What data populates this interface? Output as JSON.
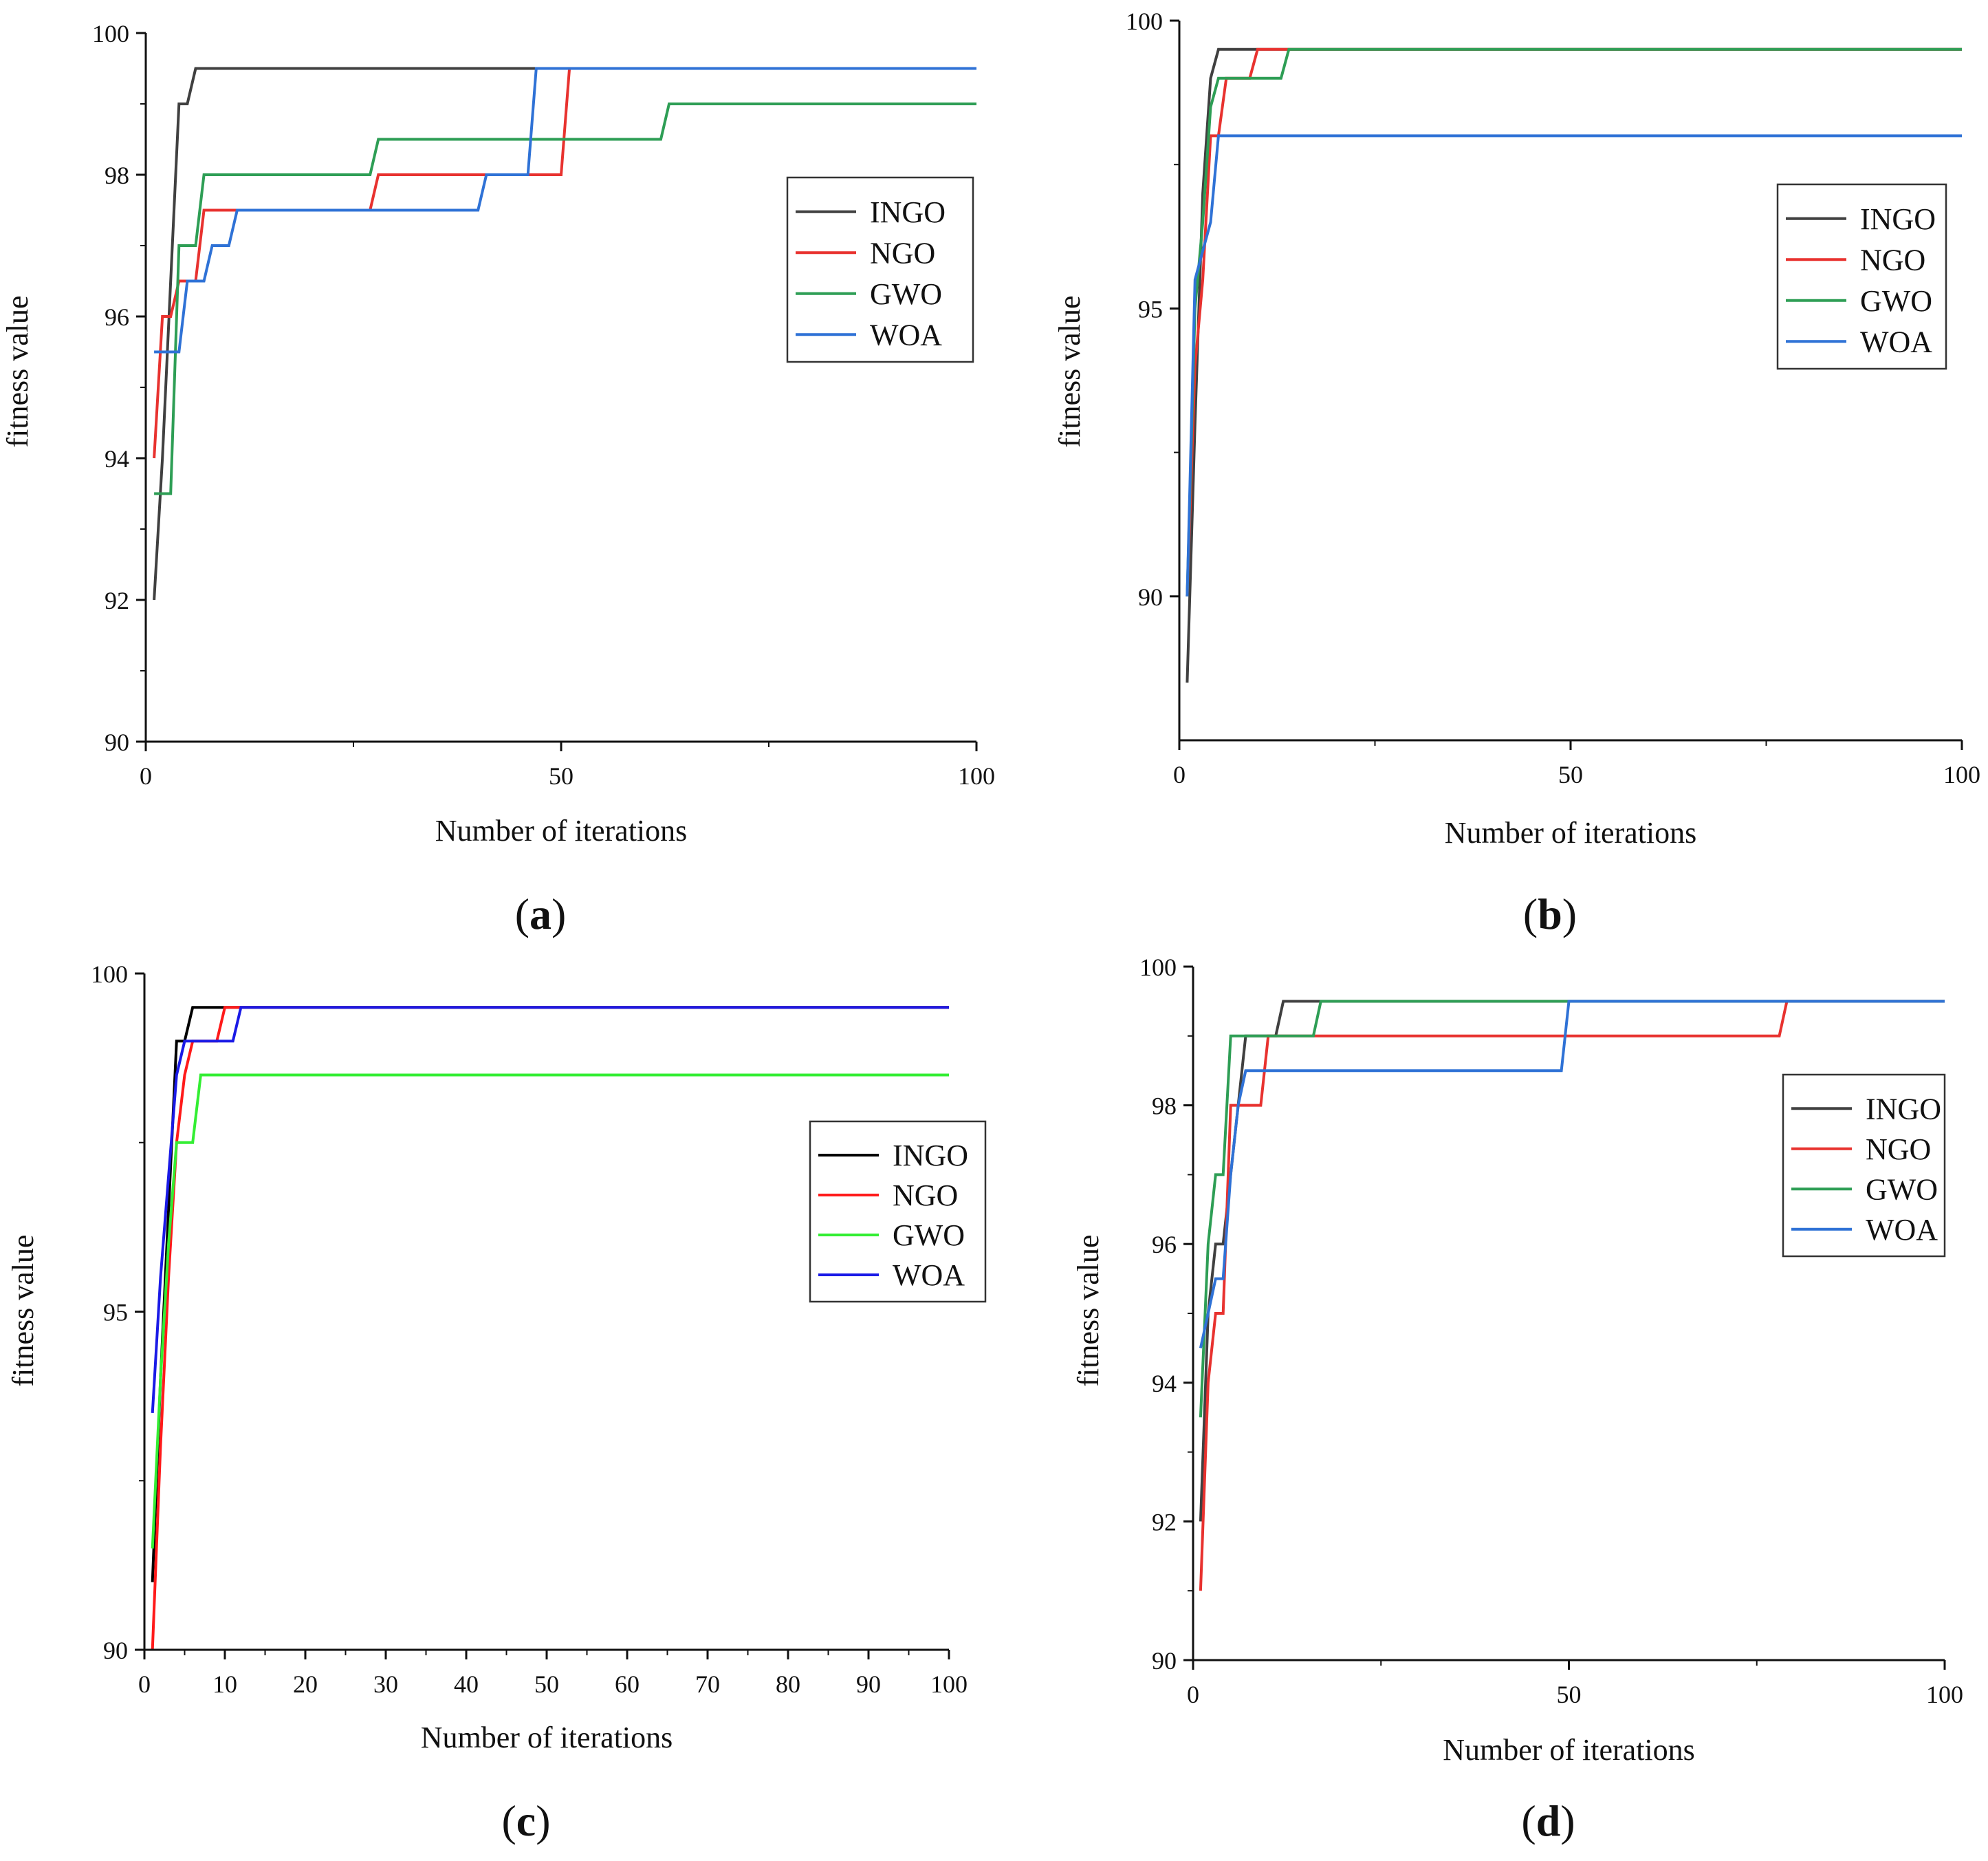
{
  "figure": {
    "panels": [
      "a",
      "b",
      "c",
      "d"
    ]
  },
  "chart_data": [
    {
      "id": "a",
      "type": "line",
      "caption": "a",
      "xlabel": "Number of iterations",
      "ylabel": "fitness value",
      "xlim": [
        0,
        100
      ],
      "ylim": [
        90,
        100
      ],
      "xticks": [
        0,
        50,
        100
      ],
      "yticks": [
        90,
        92,
        94,
        96,
        98,
        100
      ],
      "legend": "center-right",
      "grid": false,
      "series": [
        {
          "name": "INGO",
          "color": "#404040",
          "x": [
            1,
            2,
            3,
            4,
            5,
            6,
            7,
            100
          ],
          "y": [
            92,
            94,
            96.5,
            99,
            99,
            99.5,
            99.5,
            99.5
          ]
        },
        {
          "name": "NGO",
          "color": "#e8322f",
          "x": [
            1,
            2,
            4,
            6,
            7,
            27,
            28,
            50,
            51,
            100
          ],
          "y": [
            94,
            96,
            96.5,
            96.5,
            97.5,
            97.5,
            98,
            98,
            99.5,
            99.5
          ]
        },
        {
          "name": "GWO",
          "color": "#2e9e55",
          "x": [
            1,
            4,
            7,
            27,
            28,
            62,
            63,
            100
          ],
          "y": [
            93.5,
            97,
            98,
            98,
            98.5,
            98.5,
            99,
            99
          ]
        },
        {
          "name": "WOA",
          "color": "#2f72d6",
          "x": [
            1,
            4,
            5,
            7,
            8,
            10,
            11,
            40,
            41,
            46,
            47,
            100
          ],
          "y": [
            95.5,
            95.5,
            96.5,
            96.5,
            97,
            97,
            97.5,
            97.5,
            98,
            98,
            99.5,
            99.5
          ]
        }
      ]
    },
    {
      "id": "b",
      "type": "line",
      "caption": "b",
      "xlabel": "Number of iterations",
      "ylabel": "fitness value",
      "xlim": [
        0,
        100
      ],
      "ylim": [
        87.5,
        100
      ],
      "xticks": [
        0,
        50,
        100
      ],
      "yticks": [
        90,
        95,
        100
      ],
      "legend": "center-right",
      "grid": false,
      "series": [
        {
          "name": "INGO",
          "color": "#404040",
          "x": [
            1,
            2,
            3,
            4,
            5,
            100
          ],
          "y": [
            88.5,
            93,
            97,
            99,
            99.5,
            99.5
          ]
        },
        {
          "name": "NGO",
          "color": "#e8322f",
          "x": [
            1,
            2,
            3,
            4,
            6,
            9,
            10,
            100
          ],
          "y": [
            90,
            94,
            95.5,
            98,
            99,
            99,
            99.5,
            99.5
          ]
        },
        {
          "name": "GWO",
          "color": "#2e9e55",
          "x": [
            1,
            2,
            3,
            4,
            5,
            13,
            14,
            100
          ],
          "y": [
            90,
            95,
            96.5,
            98.5,
            99,
            99,
            99.5,
            99.5
          ]
        },
        {
          "name": "WOA",
          "color": "#2f72d6",
          "x": [
            1,
            2,
            3,
            4,
            5,
            100
          ],
          "y": [
            90,
            95.5,
            96,
            96.5,
            98,
            98
          ]
        }
      ]
    },
    {
      "id": "c",
      "type": "line",
      "caption": "c",
      "xlabel": "Number of iterations",
      "ylabel": "fitness value",
      "xlim": [
        0,
        100
      ],
      "ylim": [
        90,
        100
      ],
      "xticks": [
        0,
        10,
        20,
        30,
        40,
        50,
        60,
        70,
        80,
        90,
        100
      ],
      "yticks": [
        90,
        95,
        100
      ],
      "legend": "center-right",
      "grid": false,
      "series": [
        {
          "name": "INGO",
          "color": "#000000",
          "x": [
            1,
            2,
            3,
            4,
            5,
            6,
            100
          ],
          "y": [
            91,
            94,
            96.5,
            99,
            99,
            99.5,
            99.5
          ]
        },
        {
          "name": "NGO",
          "color": "#ff1a1a",
          "x": [
            1,
            2,
            3,
            4,
            5,
            6,
            9,
            10,
            100
          ],
          "y": [
            90,
            93,
            95.5,
            97.5,
            98.5,
            99,
            99,
            99.5,
            99.5
          ]
        },
        {
          "name": "GWO",
          "color": "#33ee33",
          "x": [
            1,
            2,
            3,
            4,
            5,
            7,
            100
          ],
          "y": [
            91.5,
            94,
            96,
            97.5,
            97.5,
            98.5,
            98.5
          ]
        },
        {
          "name": "WOA",
          "color": "#1a1ae6",
          "x": [
            1,
            2,
            3,
            4,
            5,
            11,
            12,
            100
          ],
          "y": [
            93.5,
            95.5,
            97,
            98.5,
            99,
            99,
            99.5,
            99.5
          ]
        }
      ]
    },
    {
      "id": "d",
      "type": "line",
      "caption": "d",
      "xlabel": "Number of iterations",
      "ylabel": "fitness value",
      "xlim": [
        0,
        100
      ],
      "ylim": [
        90,
        100
      ],
      "xticks": [
        0,
        50,
        100
      ],
      "yticks": [
        90,
        92,
        94,
        96,
        98,
        100
      ],
      "legend": "center-right",
      "grid": false,
      "series": [
        {
          "name": "INGO",
          "color": "#404040",
          "x": [
            1,
            2,
            3,
            5,
            6,
            7,
            11,
            12,
            100
          ],
          "y": [
            92,
            95,
            96,
            97,
            98,
            99,
            99,
            99.5,
            99.5
          ]
        },
        {
          "name": "NGO",
          "color": "#e8322f",
          "x": [
            1,
            2,
            3,
            4,
            5,
            6,
            9,
            10,
            16,
            17,
            78,
            79,
            100
          ],
          "y": [
            91,
            94,
            95,
            95,
            98,
            98,
            98,
            99,
            99,
            99,
            99,
            99.5,
            99.5
          ]
        },
        {
          "name": "GWO",
          "color": "#2e9e55",
          "x": [
            1,
            2,
            3,
            5,
            16,
            17,
            100
          ],
          "y": [
            93.5,
            96,
            97,
            99,
            99,
            99.5,
            99.5
          ]
        },
        {
          "name": "WOA",
          "color": "#2f72d6",
          "x": [
            1,
            2,
            3,
            4,
            5,
            6,
            7,
            49,
            50,
            100
          ],
          "y": [
            94.5,
            95,
            95.5,
            95.5,
            97,
            98,
            98.5,
            98.5,
            99.5,
            99.5
          ]
        }
      ]
    }
  ]
}
